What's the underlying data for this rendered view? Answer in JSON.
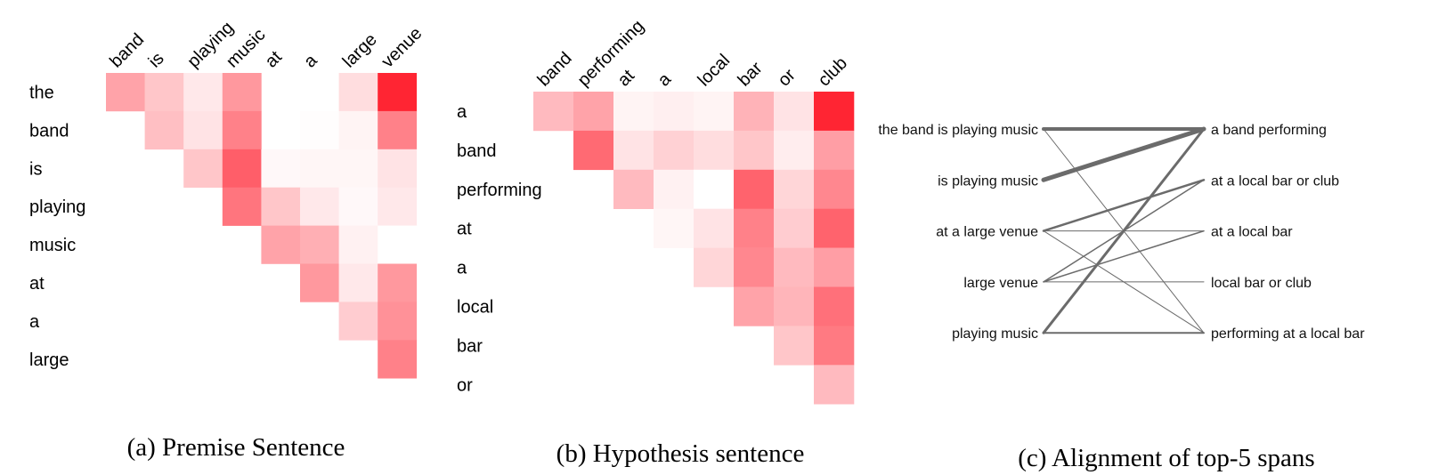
{
  "panels": [
    {
      "caption": "(a) Premise Sentence",
      "col_tokens": [
        "band",
        "is",
        "playing",
        "music",
        "at",
        "a",
        "large",
        "venue"
      ],
      "row_tokens": [
        "the",
        "band",
        "is",
        "playing",
        "music",
        "at",
        "a",
        "large"
      ],
      "colormap": "white-to-red",
      "chart_data": {
        "type": "heatmap",
        "xlabel": "",
        "ylabel": "",
        "rows": [
          "the",
          "band",
          "is",
          "playing",
          "music",
          "at",
          "a",
          "large"
        ],
        "cols": [
          "band",
          "is",
          "playing",
          "music",
          "at",
          "a",
          "large",
          "venue"
        ],
        "values": [
          [
            0.4,
            0.25,
            0.1,
            0.45,
            null,
            null,
            0.15,
            0.95
          ],
          [
            null,
            0.28,
            0.12,
            0.55,
            null,
            0.01,
            0.05,
            0.55
          ],
          [
            null,
            null,
            0.25,
            0.7,
            0.03,
            0.04,
            0.04,
            0.12
          ],
          [
            null,
            null,
            null,
            0.6,
            0.25,
            0.1,
            0.03,
            0.1
          ],
          [
            null,
            null,
            null,
            null,
            0.4,
            0.35,
            0.06,
            0.0
          ],
          [
            null,
            null,
            null,
            null,
            null,
            0.45,
            0.1,
            0.45
          ],
          [
            null,
            null,
            null,
            null,
            null,
            null,
            0.22,
            0.48
          ],
          [
            null,
            null,
            null,
            null,
            null,
            null,
            null,
            0.55
          ]
        ]
      }
    },
    {
      "caption": "(b) Hypothesis sentence",
      "col_tokens": [
        "band",
        "performing",
        "at",
        "a",
        "local",
        "bar",
        "or",
        "club"
      ],
      "row_tokens": [
        "a",
        "band",
        "performing",
        "at",
        "a",
        "local",
        "bar",
        "or"
      ],
      "colormap": "white-to-red",
      "chart_data": {
        "type": "heatmap",
        "xlabel": "",
        "ylabel": "",
        "rows": [
          "a",
          "band",
          "performing",
          "at",
          "a",
          "local",
          "bar",
          "or"
        ],
        "cols": [
          "band",
          "performing",
          "at",
          "a",
          "local",
          "bar",
          "or",
          "club"
        ],
        "values": [
          [
            0.3,
            0.4,
            0.05,
            0.07,
            0.05,
            0.33,
            0.12,
            0.95
          ],
          [
            null,
            0.65,
            0.12,
            0.2,
            0.15,
            0.25,
            0.08,
            0.42
          ],
          [
            null,
            null,
            0.3,
            0.06,
            0.0,
            0.68,
            0.18,
            0.52
          ],
          [
            null,
            null,
            null,
            0.04,
            0.12,
            0.55,
            0.22,
            0.68
          ],
          [
            null,
            null,
            null,
            null,
            0.18,
            0.52,
            0.3,
            0.42
          ],
          [
            null,
            null,
            null,
            null,
            null,
            0.4,
            0.32,
            0.62
          ],
          [
            null,
            null,
            null,
            null,
            null,
            null,
            0.25,
            0.58
          ],
          [
            null,
            null,
            null,
            null,
            null,
            null,
            null,
            0.3
          ]
        ]
      }
    }
  ],
  "alignment": {
    "caption": "(c) Alignment of top-5 spans",
    "left_spans": [
      "the band is playing music",
      "is playing music",
      "at a large venue",
      "large venue",
      "playing music"
    ],
    "right_spans": [
      "a band performing",
      "at a local bar or club",
      "at a local bar",
      "local bar or club",
      "performing at a local bar"
    ],
    "line_color": "#6b6b6b",
    "links": [
      {
        "from": 0,
        "to": 0,
        "weight": 4
      },
      {
        "from": 0,
        "to": 4,
        "weight": 1
      },
      {
        "from": 1,
        "to": 0,
        "weight": 5
      },
      {
        "from": 2,
        "to": 1,
        "weight": 2.5
      },
      {
        "from": 2,
        "to": 2,
        "weight": 1
      },
      {
        "from": 2,
        "to": 4,
        "weight": 1
      },
      {
        "from": 3,
        "to": 1,
        "weight": 1.5
      },
      {
        "from": 3,
        "to": 2,
        "weight": 1.5
      },
      {
        "from": 3,
        "to": 3,
        "weight": 1
      },
      {
        "from": 4,
        "to": 0,
        "weight": 3
      },
      {
        "from": 4,
        "to": 4,
        "weight": 2
      }
    ]
  }
}
